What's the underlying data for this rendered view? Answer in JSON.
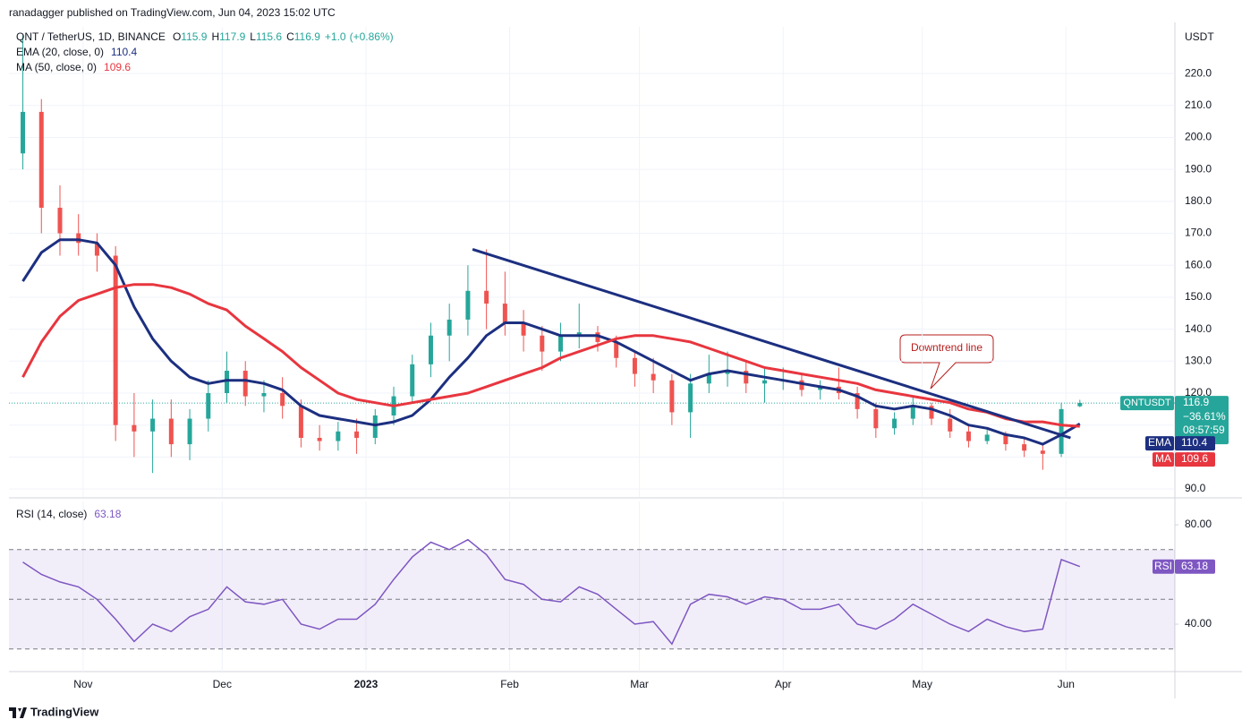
{
  "page": {
    "published": "ranadagger published on TradingView.com, Jun 04, 2023 15:02 UTC",
    "brand": "TradingView"
  },
  "chart_data": [
    {
      "type": "candlestick",
      "title": "QNT / TetherUS, 1D, BINANCE",
      "currency": "USDT",
      "ohlc": [
        {
          "label": "O",
          "value": 115.9
        },
        {
          "label": "H",
          "value": 117.9
        },
        {
          "label": "L",
          "value": 115.6
        },
        {
          "label": "C",
          "value": 116.9
        }
      ],
      "change": {
        "value": 1.0,
        "label": "+1.0"
      },
      "change_pct": {
        "value": 0.86,
        "label": "(+0.86%)"
      },
      "xlim": [
        0,
        251.5
      ],
      "ylim": [
        87.5,
        243
      ],
      "yticks": [
        {
          "value": 90,
          "label": "90.0"
        },
        {
          "value": 100,
          "label": "100.0"
        },
        {
          "value": 110,
          "label": "110.0"
        },
        {
          "value": 120,
          "label": "120.0"
        },
        {
          "value": 130,
          "label": "130.0"
        },
        {
          "value": 140,
          "label": "140.0"
        },
        {
          "value": 150,
          "label": "150.0"
        },
        {
          "value": 160,
          "label": "160.0"
        },
        {
          "value": 170,
          "label": "170.0"
        },
        {
          "value": 180,
          "label": "180.0"
        },
        {
          "value": 190,
          "label": "190.0"
        },
        {
          "value": 200,
          "label": "200.0"
        },
        {
          "value": 210,
          "label": "210.0"
        },
        {
          "value": 220,
          "label": "220.0"
        }
      ],
      "grid": true,
      "up_color": "#26a69a",
      "down_color": "#ef5350",
      "x": [
        3,
        7,
        11,
        15,
        19,
        23,
        27,
        31,
        35,
        39,
        43,
        47,
        51,
        55,
        59,
        63,
        67,
        71,
        75,
        79,
        83,
        87,
        91,
        95,
        99,
        103,
        107,
        111,
        115,
        119,
        123,
        127,
        131,
        135,
        139,
        143,
        147,
        151,
        155,
        159,
        163,
        167,
        171,
        175,
        179,
        183,
        187,
        191,
        195,
        199,
        203,
        207,
        211,
        215,
        219,
        223,
        227,
        231
      ],
      "open": [
        195,
        208,
        178,
        170,
        167,
        163,
        110,
        108,
        112,
        104,
        112,
        120,
        127,
        119,
        120,
        116,
        106,
        105,
        108,
        106,
        113,
        119,
        129,
        138,
        143,
        152,
        148,
        142,
        138,
        133,
        138,
        139,
        136,
        131,
        126,
        124,
        114,
        123,
        126,
        127,
        123,
        124,
        124,
        121,
        122,
        120,
        115,
        109,
        112,
        116,
        112,
        108,
        105,
        107,
        104,
        102,
        101,
        115.9
      ],
      "high": [
        232,
        212,
        185,
        176,
        170,
        166,
        120,
        118,
        118,
        115,
        124,
        133,
        130,
        124,
        125,
        118,
        110,
        111,
        112,
        115,
        122,
        132,
        142,
        148,
        160,
        165,
        158,
        146,
        141,
        142,
        148,
        141,
        138,
        133,
        131,
        126,
        126,
        132,
        133,
        130,
        128,
        128,
        126,
        124,
        128,
        122,
        117,
        114,
        119,
        117,
        115,
        110,
        109,
        108,
        106,
        104,
        117,
        117.9
      ],
      "low": [
        190,
        170,
        163,
        163,
        158,
        105,
        100,
        95,
        100,
        99,
        108,
        117,
        116,
        114,
        112,
        103,
        102,
        102,
        101,
        104,
        110,
        117,
        125,
        130,
        138,
        140,
        138,
        133,
        127,
        130,
        134,
        133,
        128,
        122,
        120,
        110,
        106,
        120,
        122,
        120,
        117,
        121,
        119,
        118,
        118,
        112,
        106,
        107,
        110,
        110,
        106,
        103,
        104,
        102,
        100,
        96,
        100,
        115.6
      ],
      "close": [
        208,
        178,
        170,
        167,
        163,
        110,
        108,
        112,
        104,
        112,
        120,
        127,
        119,
        120,
        116,
        106,
        105,
        108,
        106,
        113,
        119,
        129,
        138,
        143,
        152,
        148,
        142,
        138,
        133,
        138,
        139,
        136,
        131,
        126,
        124,
        114,
        123,
        126,
        127,
        123,
        124,
        124,
        121,
        122,
        120,
        115,
        109,
        112,
        116,
        112,
        108,
        105,
        107,
        104,
        102,
        101,
        115,
        116.9
      ],
      "series": [
        {
          "name": "EMA (20, close, 0)",
          "tag": "EMA",
          "legend_value": 110.4,
          "color": "#1c2f80",
          "values": [
            155,
            164,
            168,
            168,
            167,
            160,
            147,
            137,
            130,
            125,
            123,
            124,
            124,
            123,
            121,
            116,
            113,
            112,
            111,
            110,
            111,
            113,
            118,
            125,
            131,
            138,
            142,
            142,
            140,
            138,
            138,
            138,
            136,
            133,
            130,
            127,
            124,
            126,
            127,
            126,
            125,
            124,
            123,
            122,
            121,
            119,
            116,
            115,
            116,
            115,
            113,
            110,
            109,
            107,
            106,
            104,
            107,
            110.4
          ]
        },
        {
          "name": "MA (50, close, 0)",
          "tag": "MA",
          "legend_value": 109.6,
          "color": "#e8363f",
          "values": [
            125,
            136,
            144,
            149,
            151,
            153,
            154,
            154,
            153,
            151,
            148,
            146,
            141,
            137,
            133,
            128,
            124,
            120,
            118,
            117,
            116,
            117,
            118,
            119,
            120,
            122,
            124,
            126,
            128,
            131,
            133,
            135,
            137,
            138,
            138,
            137,
            136,
            134,
            132,
            130,
            128,
            127,
            126,
            125,
            124,
            123,
            121,
            120,
            119,
            118,
            117,
            115,
            114,
            112,
            111,
            111,
            110,
            109.6
          ]
        }
      ],
      "trendline": {
        "x": [
          100,
          229
        ],
        "y": [
          165,
          106
        ],
        "color": "#1c2f80"
      },
      "annotation": "Downtrend line",
      "price_tag": {
        "symbol": "QNTUSDT",
        "price": 116.9,
        "change": {
          "value": -36.61,
          "label": "−36.61%"
        },
        "countdown": "08:57:59"
      }
    },
    {
      "type": "line",
      "title": "RSI (14, close)",
      "tag": "RSI",
      "legend_value": 63.18,
      "color": "#7e57c2",
      "xlim": [
        0,
        251.5
      ],
      "ylim": [
        20.9,
        89.4
      ],
      "yticks": [
        {
          "value": 40,
          "label": "40.00"
        },
        {
          "value": 80,
          "label": "80.00"
        }
      ],
      "band": [
        30,
        70
      ],
      "midline": 50,
      "grid": true,
      "xticks": [
        {
          "value": 16,
          "label": "Nov"
        },
        {
          "value": 46,
          "label": "Dec"
        },
        {
          "value": 77,
          "label": "2023"
        },
        {
          "value": 108,
          "label": "Feb"
        },
        {
          "value": 136,
          "label": "Mar"
        },
        {
          "value": 167,
          "label": "Apr"
        },
        {
          "value": 197,
          "label": "May"
        },
        {
          "value": 228,
          "label": "Jun"
        }
      ],
      "x": [
        3,
        7,
        11,
        15,
        19,
        23,
        27,
        31,
        35,
        39,
        43,
        47,
        51,
        55,
        59,
        63,
        67,
        71,
        75,
        79,
        83,
        87,
        91,
        95,
        99,
        103,
        107,
        111,
        115,
        119,
        123,
        127,
        131,
        135,
        139,
        143,
        147,
        151,
        155,
        159,
        163,
        167,
        171,
        175,
        179,
        183,
        187,
        191,
        195,
        199,
        203,
        207,
        211,
        215,
        219,
        223,
        227,
        231
      ],
      "values": [
        65,
        60,
        57,
        55,
        50,
        42,
        33,
        40,
        37,
        43,
        46,
        55,
        49,
        48,
        50,
        40,
        38,
        42,
        42,
        48,
        58,
        67,
        73,
        70,
        74,
        68,
        58,
        56,
        50,
        49,
        55,
        52,
        46,
        40,
        41,
        32,
        48,
        52,
        51,
        48,
        51,
        50,
        46,
        46,
        48,
        40,
        38,
        42,
        48,
        44,
        40,
        37,
        42,
        39,
        37,
        38,
        66,
        63.18
      ]
    }
  ]
}
